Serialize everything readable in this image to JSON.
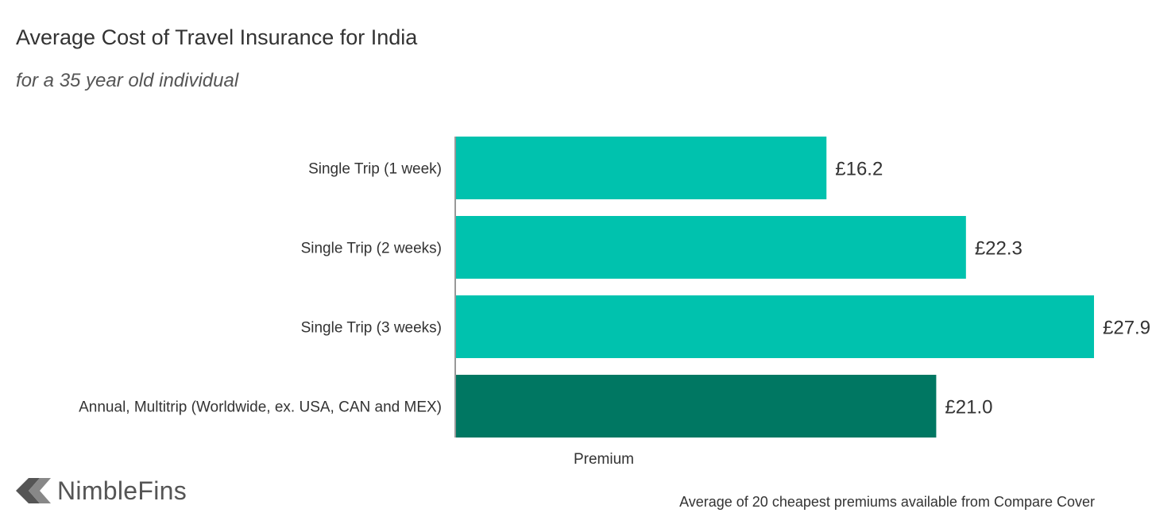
{
  "header": {
    "title": "Average Cost of Travel Insurance for India",
    "subtitle": "for a 35 year old individual"
  },
  "chart_data": {
    "type": "bar",
    "orientation": "horizontal",
    "categories": [
      "Single Trip (1 week)",
      "Single Trip (2 weeks)",
      "Single Trip (3 weeks)",
      "Annual, Multitrip (Worldwide, ex. USA, CAN and MEX)"
    ],
    "values": [
      16.2,
      22.3,
      27.9,
      21.0
    ],
    "value_labels": [
      "£16.2",
      "£22.3",
      "£27.9",
      "£21.0"
    ],
    "bar_colors": [
      "#00c2ae",
      "#00c2ae",
      "#00c2ae",
      "#007762"
    ],
    "xlabel": "Premium",
    "xlim": [
      0,
      27.9
    ],
    "grid": false,
    "legend": "none"
  },
  "footer": {
    "logo_text": "NimbleFins",
    "source": "Average of 20 cheapest premiums available from Compare Cover"
  },
  "colors": {
    "accent": "#00c2ae",
    "highlight": "#007762",
    "text": "#333333",
    "logo": "#555555"
  }
}
